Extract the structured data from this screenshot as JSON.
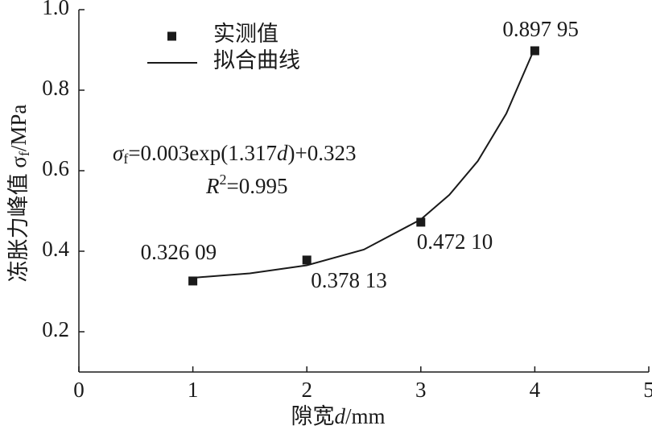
{
  "chart_data": {
    "type": "scatter",
    "xlabel": {
      "text": "隙宽",
      "var": "d",
      "unit": "/mm"
    },
    "ylabel": {
      "text": "冻胀力峰值 σ",
      "sub": "f",
      "unit": "/MPa"
    },
    "annotation": {
      "line1": [
        "σ",
        "f",
        "=0.003exp(1.317",
        "d",
        ")+0.323"
      ],
      "line2": [
        "R",
        "2",
        "=0.995"
      ]
    },
    "xlim": [
      0,
      5
    ],
    "xticks": [
      0,
      1,
      2,
      3,
      4,
      5
    ],
    "ylim": [
      0.1,
      1.0
    ],
    "yticks": [
      0.2,
      0.4,
      0.6,
      0.8,
      {
        "value": 1.0,
        "label": "1.0"
      }
    ],
    "legend": "upper left",
    "series": [
      {
        "name": "实测值",
        "type": "scatter",
        "color": "#1a1a1a",
        "x": [
          1,
          2,
          3,
          4
        ],
        "values": [
          0.32609,
          0.37813,
          0.4721,
          0.89795
        ],
        "value_labels": [
          "0.326 09",
          "0.378 13",
          "0.472 10",
          "0.897 95"
        ]
      },
      {
        "name": "拟合曲线",
        "type": "line",
        "color": "#1a1a1a",
        "x": [
          1,
          1.5,
          2,
          2.5,
          3,
          3.25,
          3.5,
          3.75,
          4
        ],
        "values": [
          0.334,
          0.345,
          0.365,
          0.404,
          0.479,
          0.54,
          0.624,
          0.742,
          0.905
        ]
      }
    ]
  }
}
